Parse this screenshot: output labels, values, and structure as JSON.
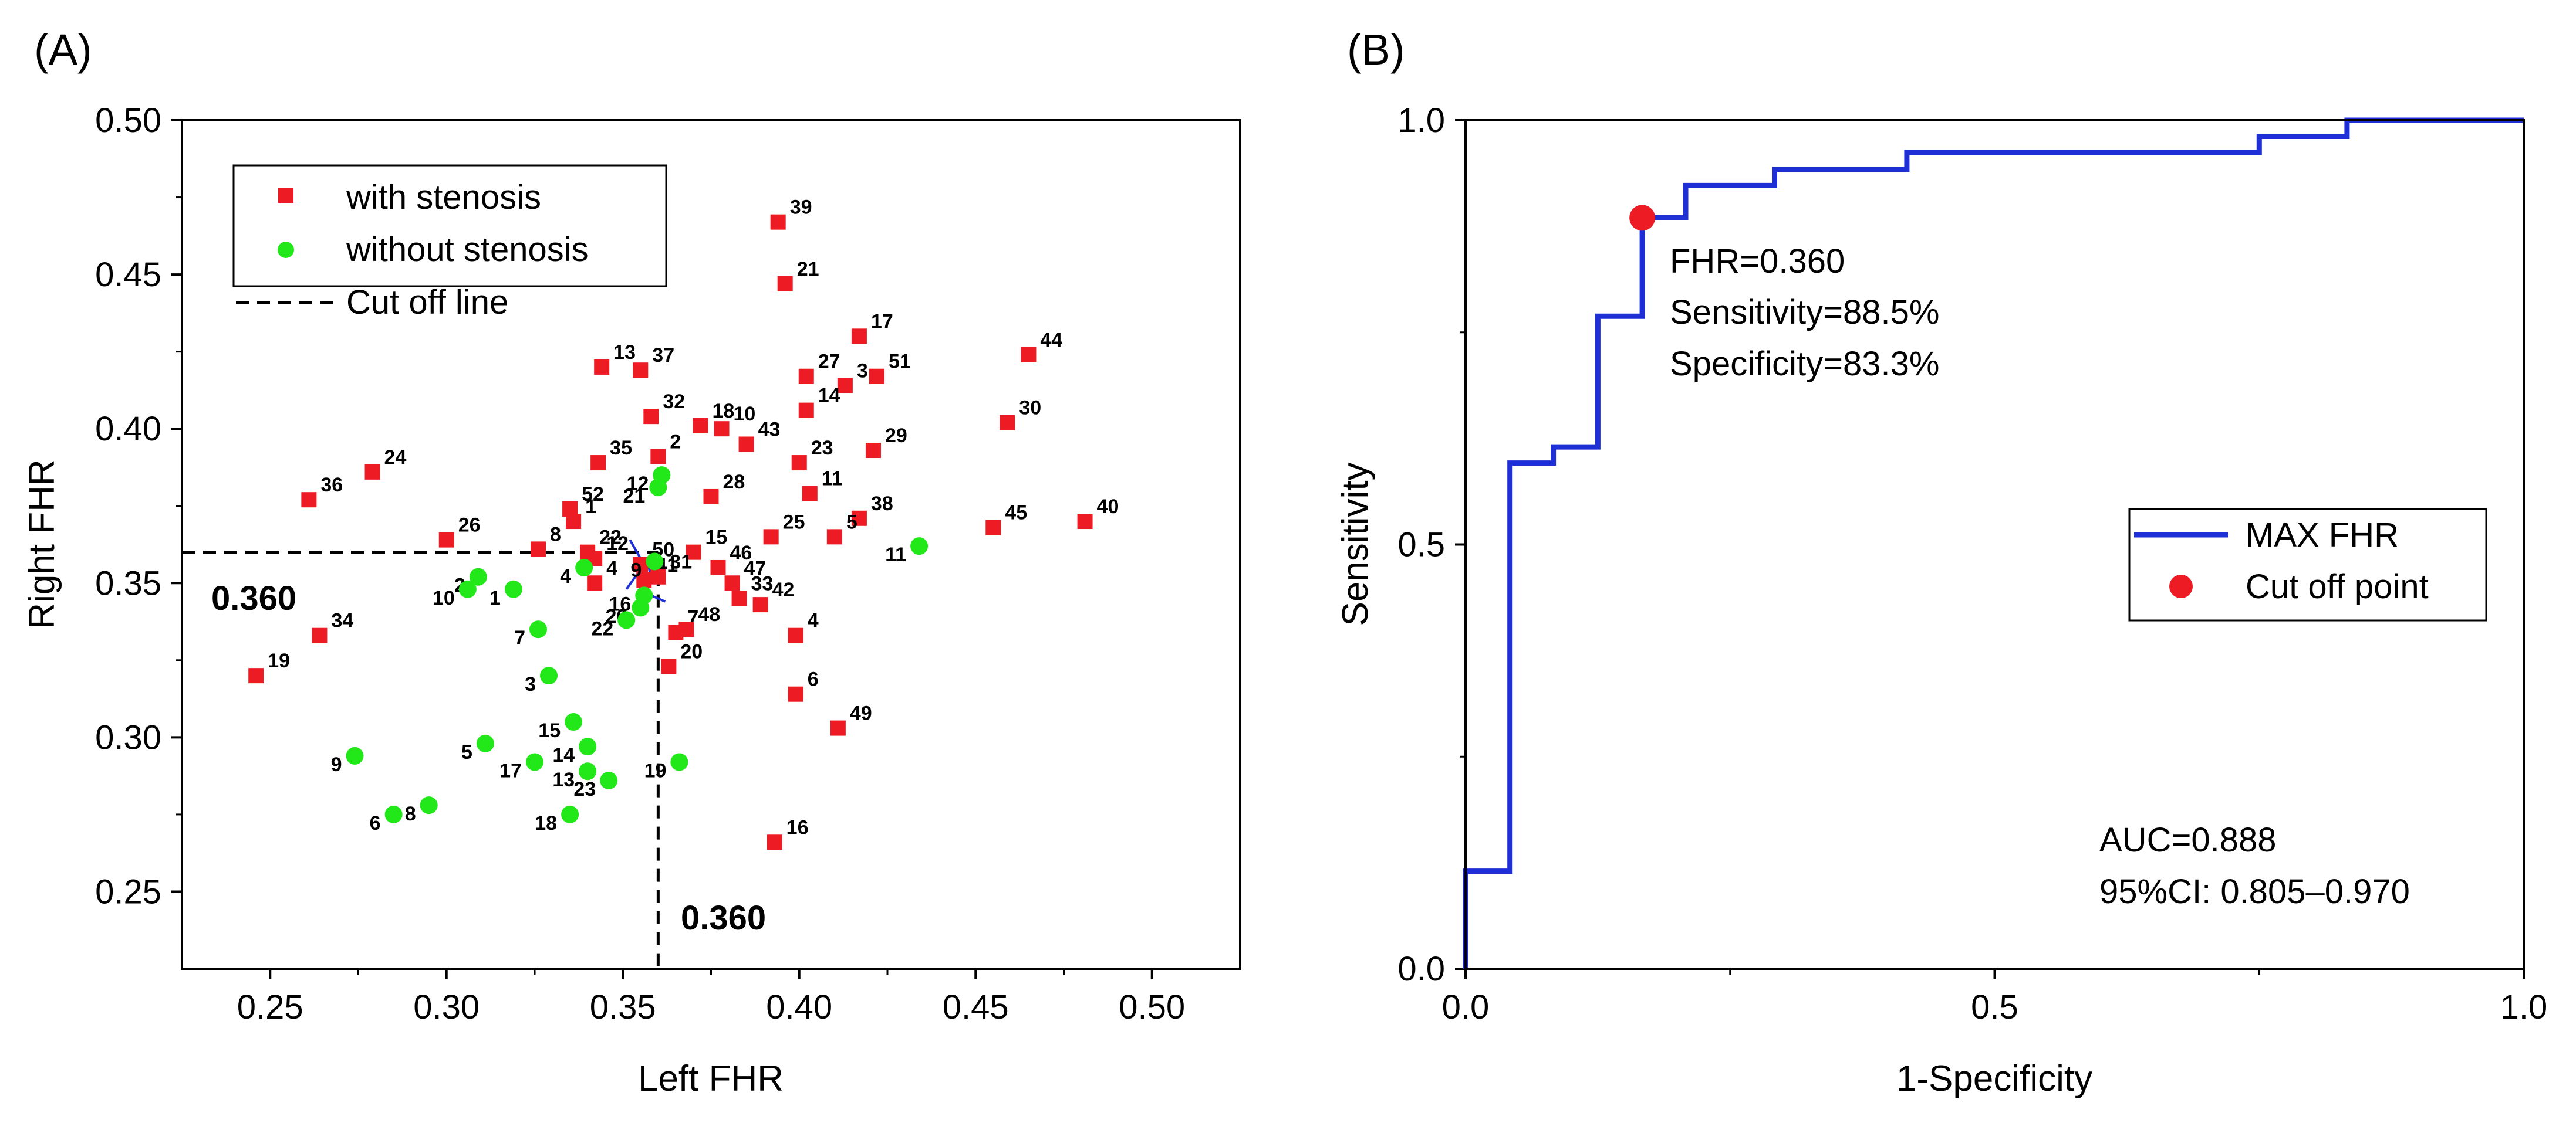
{
  "chart_data": [
    {
      "panel_label": "(A)",
      "type": "scatter",
      "xlabel": "Left FHR",
      "ylabel": "Right FHR",
      "xlim": [
        0.225,
        0.525
      ],
      "ylim": [
        0.225,
        0.5
      ],
      "xticks": [
        "0.25",
        "0.30",
        "0.35",
        "0.40",
        "0.45",
        "0.50"
      ],
      "yticks": [
        "0.25",
        "0.30",
        "0.35",
        "0.40",
        "0.45",
        "0.50"
      ],
      "legend_position": "top-left",
      "legend": [
        "with stenosis",
        "without stenosis",
        "Cut off line"
      ],
      "cutoff": {
        "x": 0.36,
        "y": 0.36,
        "x_label": "0.360",
        "y_label": "0.360"
      },
      "colors": {
        "with_stenosis": "#ed1c24",
        "without_stenosis": "#22e81a",
        "leader": "#1f2fd6"
      },
      "series": [
        {
          "name": "with stenosis",
          "points": [
            {
              "x": 0.394,
              "y": 0.467,
              "label": "39"
            },
            {
              "x": 0.396,
              "y": 0.447,
              "label": "21"
            },
            {
              "x": 0.417,
              "y": 0.43,
              "label": "17"
            },
            {
              "x": 0.465,
              "y": 0.424,
              "label": "44"
            },
            {
              "x": 0.344,
              "y": 0.42,
              "label": "13"
            },
            {
              "x": 0.355,
              "y": 0.419,
              "label": "37"
            },
            {
              "x": 0.402,
              "y": 0.417,
              "label": "27"
            },
            {
              "x": 0.422,
              "y": 0.417,
              "label": "51"
            },
            {
              "x": 0.413,
              "y": 0.414,
              "label": "3"
            },
            {
              "x": 0.402,
              "y": 0.406,
              "label": "14"
            },
            {
              "x": 0.358,
              "y": 0.404,
              "label": "32"
            },
            {
              "x": 0.372,
              "y": 0.401,
              "label": "18"
            },
            {
              "x": 0.378,
              "y": 0.4,
              "label": "10"
            },
            {
              "x": 0.459,
              "y": 0.402,
              "label": "30"
            },
            {
              "x": 0.385,
              "y": 0.395,
              "label": "43"
            },
            {
              "x": 0.421,
              "y": 0.393,
              "label": "29"
            },
            {
              "x": 0.4,
              "y": 0.389,
              "label": "23"
            },
            {
              "x": 0.343,
              "y": 0.389,
              "label": "35"
            },
            {
              "x": 0.36,
              "y": 0.391,
              "label": "2"
            },
            {
              "x": 0.279,
              "y": 0.386,
              "label": "24"
            },
            {
              "x": 0.261,
              "y": 0.377,
              "label": "36"
            },
            {
              "x": 0.375,
              "y": 0.378,
              "label": "28"
            },
            {
              "x": 0.403,
              "y": 0.379,
              "label": "11"
            },
            {
              "x": 0.335,
              "y": 0.374,
              "label": "52"
            },
            {
              "x": 0.336,
              "y": 0.37,
              "label": "1"
            },
            {
              "x": 0.417,
              "y": 0.371,
              "label": "38"
            },
            {
              "x": 0.481,
              "y": 0.37,
              "label": "40"
            },
            {
              "x": 0.455,
              "y": 0.368,
              "label": "45"
            },
            {
              "x": 0.41,
              "y": 0.365,
              "label": "5"
            },
            {
              "x": 0.392,
              "y": 0.365,
              "label": "25"
            },
            {
              "x": 0.3,
              "y": 0.364,
              "label": "26"
            },
            {
              "x": 0.326,
              "y": 0.361,
              "label": "8"
            },
            {
              "x": 0.34,
              "y": 0.36,
              "label": "22"
            },
            {
              "x": 0.37,
              "y": 0.36,
              "label": "15"
            },
            {
              "x": 0.342,
              "y": 0.358,
              "label": "12"
            },
            {
              "x": 0.355,
              "y": 0.356,
              "label": "50"
            },
            {
              "x": 0.356,
              "y": 0.351,
              "label": "41"
            },
            {
              "x": 0.377,
              "y": 0.355,
              "label": "46"
            },
            {
              "x": 0.36,
              "y": 0.352,
              "label": "31"
            },
            {
              "x": 0.342,
              "y": 0.35,
              "label": "4"
            },
            {
              "x": 0.381,
              "y": 0.35,
              "label": "47"
            },
            {
              "x": 0.383,
              "y": 0.345,
              "label": "33"
            },
            {
              "x": 0.389,
              "y": 0.343,
              "label": "42"
            },
            {
              "x": 0.365,
              "y": 0.334,
              "label": "7"
            },
            {
              "x": 0.368,
              "y": 0.335,
              "label": "48"
            },
            {
              "x": 0.399,
              "y": 0.333,
              "label": "4"
            },
            {
              "x": 0.264,
              "y": 0.333,
              "label": "34"
            },
            {
              "x": 0.363,
              "y": 0.323,
              "label": "20"
            },
            {
              "x": 0.246,
              "y": 0.32,
              "label": "19"
            },
            {
              "x": 0.399,
              "y": 0.314,
              "label": "6"
            },
            {
              "x": 0.411,
              "y": 0.303,
              "label": "49"
            },
            {
              "x": 0.393,
              "y": 0.266,
              "label": "16"
            }
          ]
        },
        {
          "name": "without stenosis",
          "points": [
            {
              "x": 0.361,
              "y": 0.385,
              "label": "12"
            },
            {
              "x": 0.36,
              "y": 0.381,
              "label": "21"
            },
            {
              "x": 0.359,
              "y": 0.357,
              "label": "9"
            },
            {
              "x": 0.339,
              "y": 0.355,
              "label": "4"
            },
            {
              "x": 0.434,
              "y": 0.362,
              "label": "11"
            },
            {
              "x": 0.309,
              "y": 0.352,
              "label": "2"
            },
            {
              "x": 0.306,
              "y": 0.348,
              "label": "10"
            },
            {
              "x": 0.319,
              "y": 0.348,
              "label": "1"
            },
            {
              "x": 0.356,
              "y": 0.346,
              "label": "16"
            },
            {
              "x": 0.355,
              "y": 0.342,
              "label": "20"
            },
            {
              "x": 0.351,
              "y": 0.338,
              "label": "22"
            },
            {
              "x": 0.326,
              "y": 0.335,
              "label": "7"
            },
            {
              "x": 0.329,
              "y": 0.32,
              "label": "3"
            },
            {
              "x": 0.336,
              "y": 0.305,
              "label": "15"
            },
            {
              "x": 0.34,
              "y": 0.297,
              "label": "14"
            },
            {
              "x": 0.311,
              "y": 0.298,
              "label": "5"
            },
            {
              "x": 0.274,
              "y": 0.294,
              "label": "9"
            },
            {
              "x": 0.325,
              "y": 0.292,
              "label": "17"
            },
            {
              "x": 0.366,
              "y": 0.292,
              "label": "19"
            },
            {
              "x": 0.34,
              "y": 0.289,
              "label": "13"
            },
            {
              "x": 0.346,
              "y": 0.286,
              "label": "23"
            },
            {
              "x": 0.295,
              "y": 0.278,
              "label": "8"
            },
            {
              "x": 0.285,
              "y": 0.275,
              "label": "6"
            },
            {
              "x": 0.335,
              "y": 0.275,
              "label": "18"
            }
          ]
        }
      ]
    },
    {
      "panel_label": "(B)",
      "type": "line",
      "title": "",
      "xlabel": "1-Specificity",
      "ylabel": "Sensitivity",
      "xlim": [
        0,
        1
      ],
      "ylim": [
        0,
        1
      ],
      "xticks": [
        "0.0",
        "0.5",
        "1.0"
      ],
      "yticks": [
        "0.0",
        "0.5",
        "1.0"
      ],
      "legend_position": "center-right",
      "legend": [
        "MAX FHR",
        "Cut off point"
      ],
      "colors": {
        "roc": "#1f2fd6",
        "cutoff_point": "#ed1c24"
      },
      "series": [
        {
          "name": "MAX FHR",
          "x": [
            0,
            0,
            0.042,
            0.042,
            0.083,
            0.083,
            0.125,
            0.125,
            0.167,
            0.167,
            0.208,
            0.208,
            0.292,
            0.292,
            0.417,
            0.417,
            0.75,
            0.75,
            0.833,
            0.833,
            1.0
          ],
          "y": [
            0,
            0.115,
            0.115,
            0.596,
            0.596,
            0.615,
            0.615,
            0.769,
            0.769,
            0.885,
            0.885,
            0.923,
            0.923,
            0.942,
            0.942,
            0.962,
            0.962,
            0.981,
            0.981,
            1.0,
            1.0
          ]
        }
      ],
      "cutoff_point": {
        "x": 0.167,
        "y": 0.885
      },
      "annotations": [
        "FHR=0.360",
        "Sensitivity=88.5%",
        "Specificity=83.3%"
      ],
      "auc_text": [
        "AUC=0.888",
        "95%CI: 0.805–0.970"
      ]
    }
  ]
}
